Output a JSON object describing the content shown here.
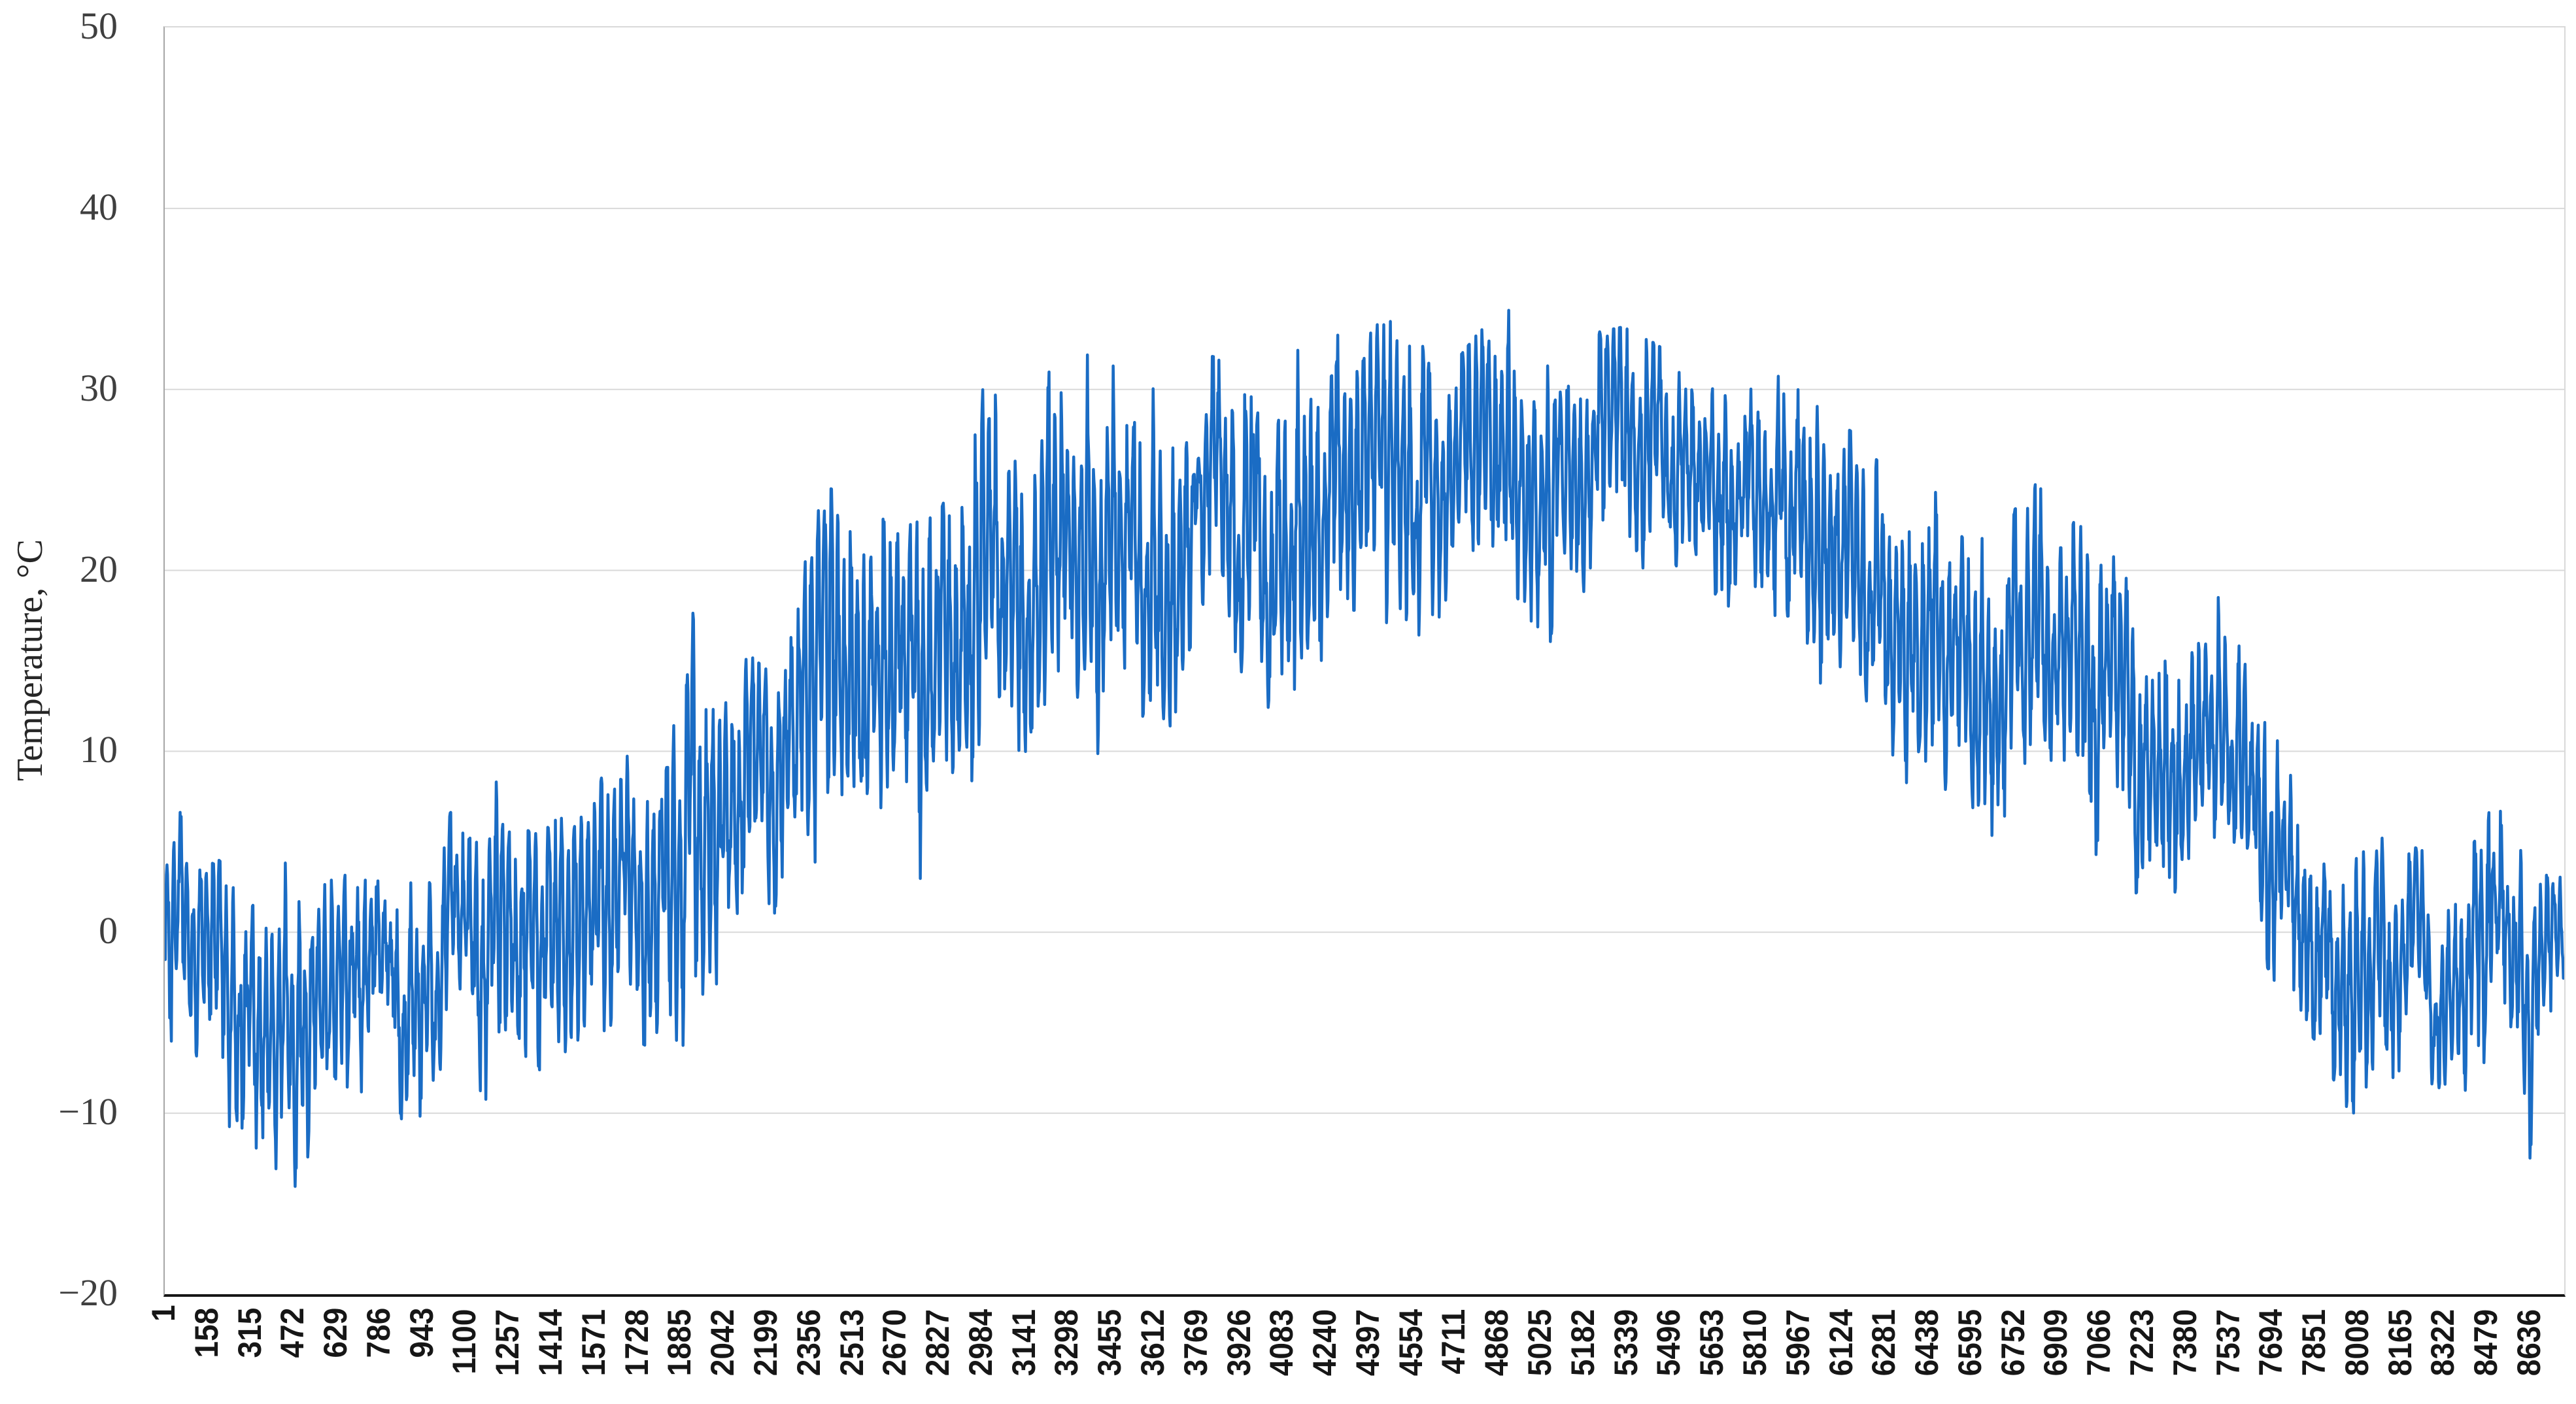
{
  "page": {
    "background": "#ffffff"
  },
  "chart_data": {
    "type": "line",
    "title": "",
    "xlabel": "",
    "ylabel": "Temperature, °C",
    "legend": "none",
    "grid": "horizontal",
    "ylim": [
      -20,
      50
    ],
    "xlim": [
      1,
      8760
    ],
    "y_ticks": [
      50,
      40,
      30,
      20,
      10,
      0,
      -10,
      -20
    ],
    "y_tick_labels": [
      "50",
      "40",
      "30",
      "20",
      "10",
      "0",
      "−10",
      "−20"
    ],
    "x_tick_step": 157,
    "x_tick_labels": [
      "1",
      "158",
      "315",
      "472",
      "629",
      "786",
      "943",
      "1100",
      "1257",
      "1414",
      "1571",
      "1728",
      "1885",
      "2042",
      "2199",
      "2356",
      "2513",
      "2670",
      "2827",
      "2984",
      "3141",
      "3298",
      "3455",
      "3612",
      "3769",
      "3926",
      "4083",
      "4240",
      "4397",
      "4554",
      "4711",
      "4868",
      "5025",
      "5182",
      "5339",
      "5496",
      "5653",
      "5810",
      "5967",
      "6124",
      "6281",
      "6438",
      "6595",
      "6752",
      "6909",
      "7066",
      "7223",
      "7380",
      "7537",
      "7694",
      "7851",
      "8008",
      "8165",
      "8322",
      "8479",
      "8636"
    ],
    "colors": {
      "series": "#1a6cc4",
      "gridline": "#d9d9d9",
      "left_axis": "#a6a6a6",
      "bottom_axis": "#161616",
      "tick_label": "#3f3f3f"
    },
    "series": [
      {
        "name": "Temperature",
        "color": "#1a6cc4",
        "points_per_hour": 1,
        "envelope": {
          "x": [
            1,
            158,
            315,
            472,
            629,
            786,
            943,
            1100,
            1257,
            1414,
            1571,
            1728,
            1885,
            2042,
            2199,
            2356,
            2513,
            2670,
            2827,
            2984,
            3141,
            3298,
            3455,
            3612,
            3769,
            3926,
            4083,
            4240,
            4397,
            4554,
            4711,
            4868,
            5025,
            5182,
            5339,
            5496,
            5653,
            5810,
            5967,
            6124,
            6281,
            6438,
            6595,
            6752,
            6909,
            7066,
            7223,
            7380,
            7537,
            7694,
            7851,
            8008,
            8165,
            8322,
            8479,
            8636,
            8760
          ],
          "min": [
            -6.5,
            -10,
            -15,
            -15,
            -11.5,
            -9.5,
            -12.5,
            -9,
            -9.5,
            -7,
            -7.5,
            -6,
            -7.5,
            -4.5,
            -2,
            0.5,
            -1.5,
            1,
            0.5,
            4,
            8,
            9,
            10,
            9,
            11,
            13,
            12,
            12.5,
            15,
            14,
            17,
            15.5,
            16,
            15.5,
            18,
            17.5,
            16.5,
            17,
            13,
            10,
            9,
            6,
            2.5,
            6,
            7,
            2,
            0,
            3,
            2.5,
            -2.5,
            -6,
            -11,
            -8,
            -9.5,
            -9.5,
            -12.5,
            -5
          ],
          "max": [
            7.8,
            4.5,
            2.5,
            5,
            4.5,
            4.5,
            5,
            7.5,
            10,
            12,
            9,
            12,
            20,
            16.5,
            14.5,
            25,
            24,
            22.5,
            23,
            30,
            29,
            32.5,
            33.5,
            31,
            32,
            31.5,
            34,
            33,
            33,
            36,
            31.5,
            34.5,
            37.5,
            33,
            33.5,
            32,
            31.5,
            31.5,
            30,
            28,
            26.5,
            25,
            21,
            24,
            25.5,
            22,
            18,
            18.5,
            18.5,
            14,
            8,
            8,
            5,
            4,
            9.5,
            3.5,
            3.5
          ]
        }
      }
    ]
  }
}
